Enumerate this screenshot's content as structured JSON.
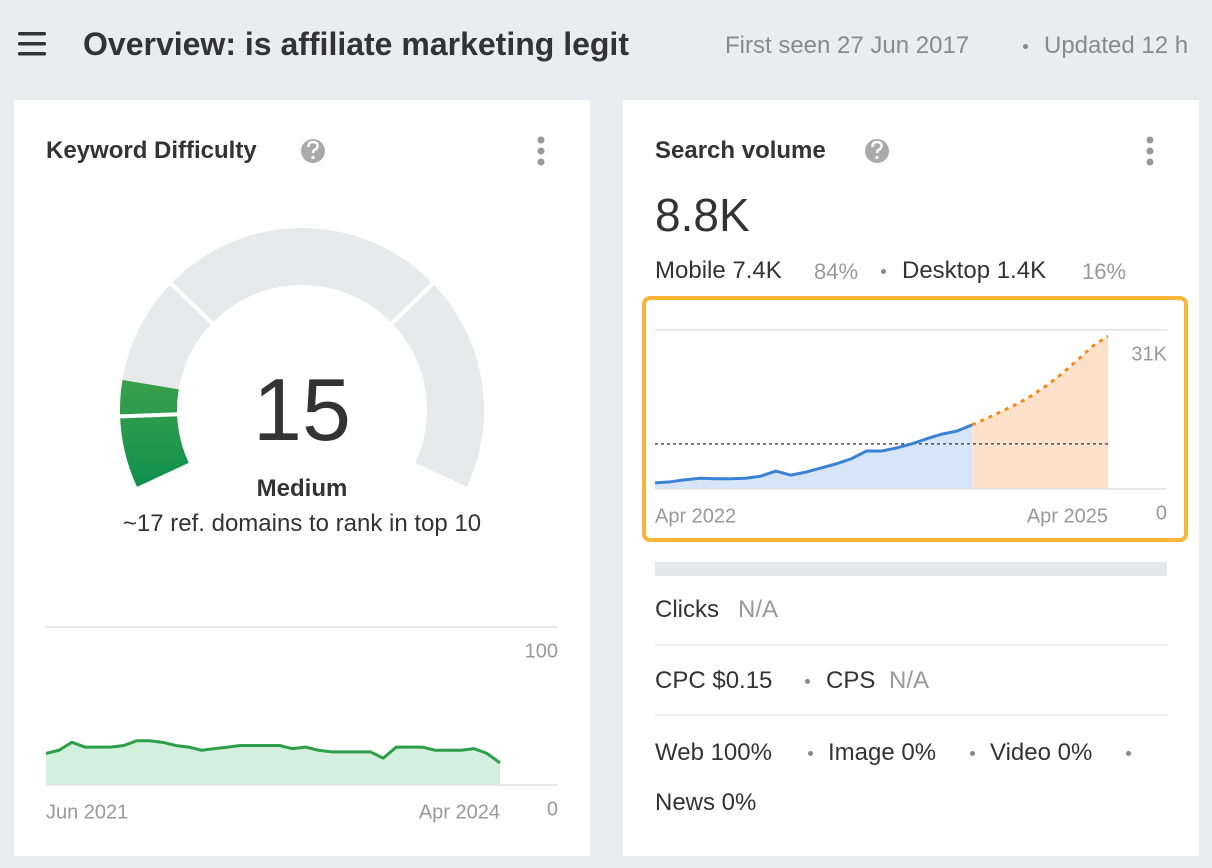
{
  "header": {
    "title": "Overview: is affiliate marketing legit",
    "first_seen": "First seen 27 Jun 2017",
    "updated": "Updated 12 h"
  },
  "keyword_difficulty": {
    "title": "Keyword Difficulty",
    "score": 15,
    "score_range": [
      0,
      100
    ],
    "level": "Medium",
    "note": "~17 ref. domains to rank in top 10",
    "chart": {
      "type": "area",
      "categories": [
        "Jun 2021",
        null,
        null,
        null,
        null,
        null,
        null,
        null,
        null,
        null,
        null,
        null,
        null,
        null,
        null,
        null,
        null,
        null,
        null,
        null,
        null,
        null,
        null,
        null,
        null,
        null,
        null,
        null,
        null,
        null,
        null,
        null,
        null,
        null,
        null,
        "Apr 2024"
      ],
      "series": [
        {
          "color": "#2e9e48",
          "fill": "#d3efdd",
          "values": [
            20,
            22,
            27,
            24,
            24,
            24,
            25,
            28,
            28,
            27,
            25,
            24,
            22,
            23,
            24,
            25,
            25,
            25,
            25,
            23,
            24,
            22,
            21,
            21,
            21,
            21,
            17,
            24,
            24,
            24,
            22,
            22,
            22,
            23,
            20,
            14
          ]
        }
      ],
      "ylim": [
        0,
        100
      ],
      "yticks": [
        0,
        100
      ]
    }
  },
  "search_volume": {
    "title": "Search volume",
    "volume": "8.8K",
    "mobile": "Mobile 7.4K",
    "mobile_share": "84%",
    "desktop": "Desktop 1.4K",
    "desktop_share": "16%",
    "chart": {
      "type": "area",
      "categories": [
        "Apr 2022",
        null,
        null,
        null,
        null,
        null,
        null,
        null,
        null,
        null,
        null,
        null,
        null,
        null,
        null,
        null,
        null,
        null,
        null,
        null,
        null,
        null,
        null,
        null,
        null,
        null,
        null,
        null,
        null,
        null,
        "Apr 2025"
      ],
      "series": [
        {
          "color": "#3b82d6",
          "fill": "#d6e6f8",
          "values": [
            1200,
            1400,
            1800,
            2100,
            2000,
            2000,
            2100,
            2500,
            3500,
            2700,
            3300,
            4100,
            4900,
            5900,
            7400,
            7400,
            8000,
            8800,
            9800,
            10700,
            11300,
            12500,
            null,
            null,
            null,
            null,
            null,
            null,
            null,
            null,
            null
          ]
        },
        {
          "color": "#f28c1e",
          "fill": "#fde1cb",
          "dashed": true,
          "values": [
            null,
            null,
            null,
            null,
            null,
            null,
            null,
            null,
            null,
            null,
            null,
            null,
            null,
            null,
            null,
            null,
            null,
            null,
            null,
            null,
            null,
            12500,
            13800,
            15200,
            16600,
            18300,
            20300,
            22600,
            25200,
            27900,
            29800
          ]
        }
      ],
      "reference_value": 8800,
      "ylim": [
        0,
        31000
      ],
      "yticks": [
        0,
        {
          "value": 31000,
          "label": "31K"
        }
      ]
    },
    "clicks": {
      "label": "Clicks",
      "value": "N/A"
    },
    "cpc": "CPC $0.15",
    "cps": {
      "label": "CPS",
      "value": "N/A"
    },
    "serp_features": [
      "Web 100%",
      "Image 0%",
      "Video 0%",
      "News 0%"
    ]
  }
}
